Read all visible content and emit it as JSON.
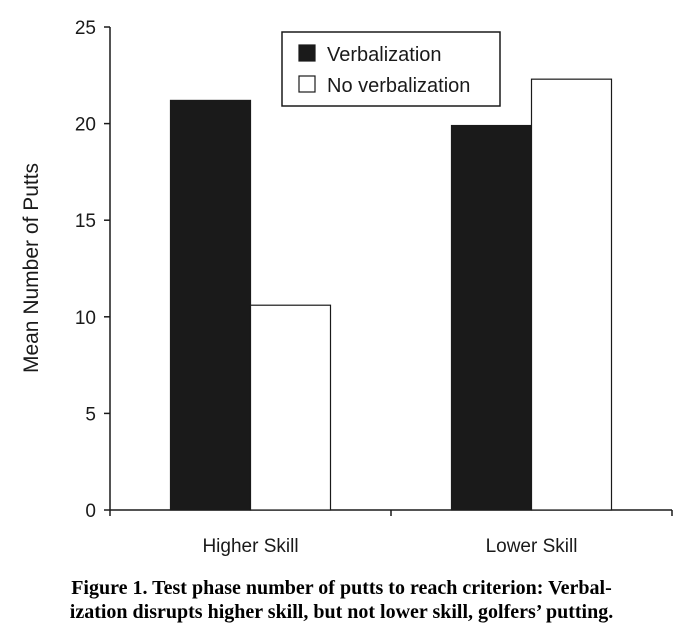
{
  "chart_data": {
    "type": "bar",
    "categories": [
      "Higher Skill",
      "Lower Skill"
    ],
    "series": [
      {
        "name": "Verbalization",
        "values": [
          21.2,
          19.9
        ],
        "color": "#1a1a1a"
      },
      {
        "name": "No verbalization",
        "values": [
          10.6,
          22.3
        ],
        "color": "#ffffff"
      }
    ],
    "ylabel": "Mean Number of Putts",
    "xlabel": "",
    "ylim": [
      0,
      25
    ],
    "yticks": [
      "0",
      "5",
      "10",
      "15",
      "20",
      "25"
    ],
    "legend_position": "top-center",
    "grid": false
  },
  "caption": {
    "line1": "Figure 1. Test phase number of putts to reach criterion: Verbal-",
    "line2": "ization disrupts higher skill, but not lower skill, golfers’ putting."
  }
}
